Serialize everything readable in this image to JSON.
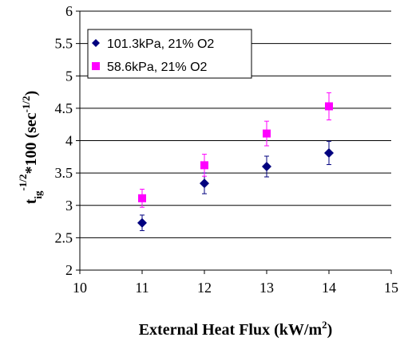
{
  "chart_data": {
    "type": "scatter",
    "xlabel": {
      "main": "External Heat Flux (kW/m",
      "sup": "2",
      "tail": ")"
    },
    "ylabel": {
      "main": "t",
      "sub": "ig",
      "sup": "-1/2",
      "mid": "*100 (sec",
      "sup2": "-1/2",
      "tail": ")"
    },
    "xlim": [
      10,
      15
    ],
    "ylim": [
      2,
      6
    ],
    "x_ticks": [
      "10",
      "11",
      "12",
      "13",
      "14",
      "15"
    ],
    "y_ticks": [
      "2",
      "2.5",
      "3",
      "3.5",
      "4",
      "4.5",
      "5",
      "5.5",
      "6"
    ],
    "grid": "horizontal",
    "legend_position": "top-left",
    "series": [
      {
        "name": "101.3kPa, 21% O2",
        "marker": "diamond",
        "color": "#00007f",
        "points": [
          {
            "x": 11,
            "y": 2.73,
            "err": 0.12
          },
          {
            "x": 12,
            "y": 3.34,
            "err": 0.16
          },
          {
            "x": 13,
            "y": 3.6,
            "err": 0.16
          },
          {
            "x": 14,
            "y": 3.81,
            "err": 0.18
          }
        ]
      },
      {
        "name": "58.6kPa, 21% O2",
        "marker": "square",
        "color": "#ff00ff",
        "points": [
          {
            "x": 11,
            "y": 3.11,
            "err": 0.14
          },
          {
            "x": 12,
            "y": 3.62,
            "err": 0.17
          },
          {
            "x": 13,
            "y": 4.11,
            "err": 0.19
          },
          {
            "x": 14,
            "y": 4.53,
            "err": 0.21
          }
        ]
      }
    ]
  }
}
